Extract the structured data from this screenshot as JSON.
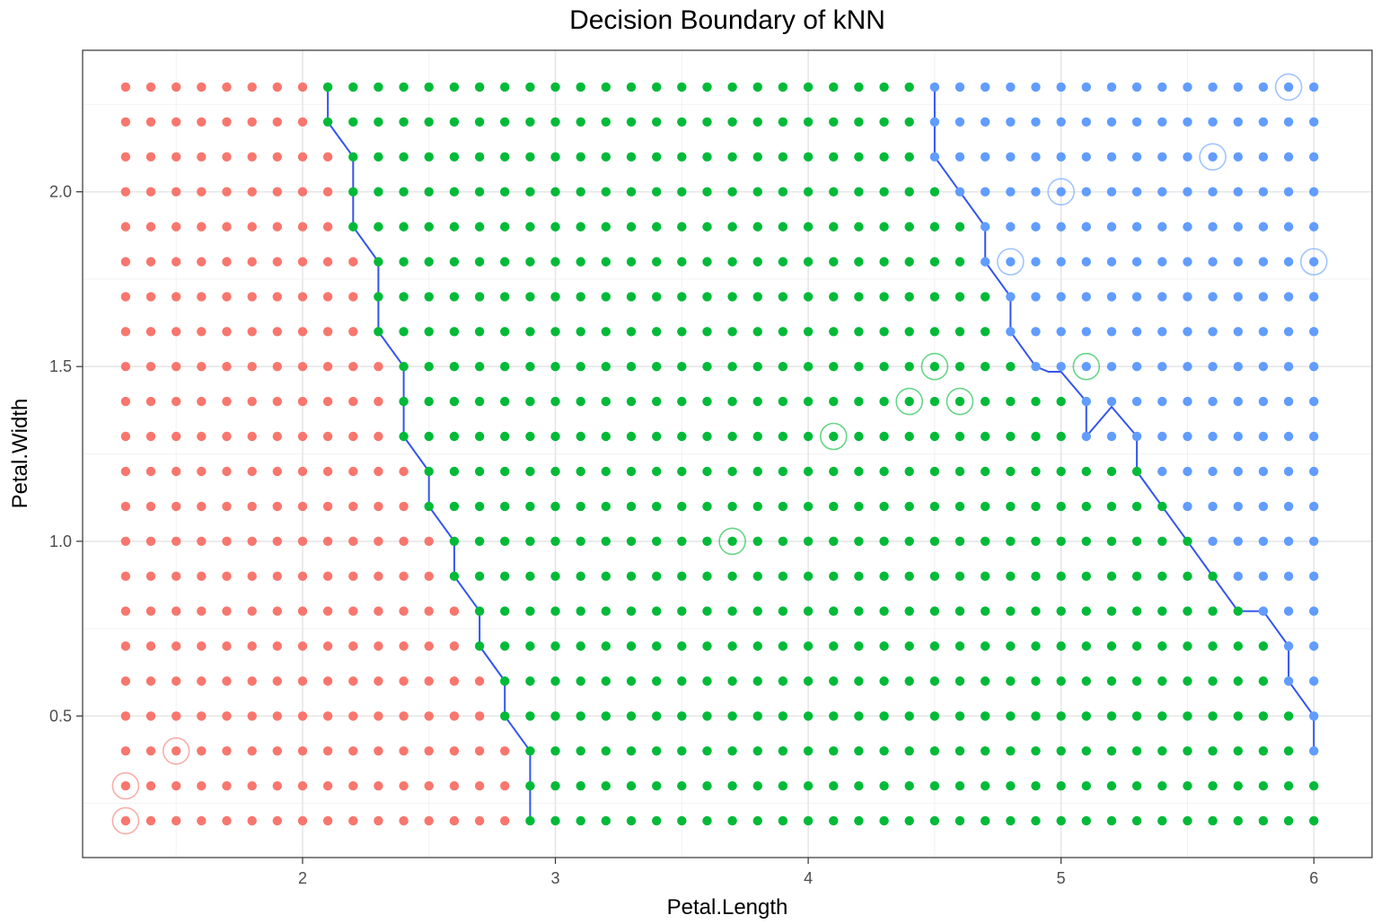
{
  "chart_data": {
    "type": "scatter",
    "title": "Decision Boundary of kNN",
    "xlabel": "Petal.Length",
    "ylabel": "Petal.Width",
    "xlim": [
      1.13,
      6.23
    ],
    "ylim": [
      0.095,
      2.405
    ],
    "xticks": [
      2,
      3,
      4,
      5,
      6
    ],
    "yticks": [
      0.5,
      1.0,
      1.5,
      2.0
    ],
    "xtick_labels": [
      "2",
      "3",
      "4",
      "5",
      "6"
    ],
    "ytick_labels": [
      "0.5",
      "1.0",
      "1.5",
      "2.0"
    ],
    "grid": true,
    "legend": "none",
    "colors": {
      "class_a": "#f8766d",
      "class_b": "#00ba38",
      "class_c": "#619cff",
      "boundary": "#3355ee",
      "grid_major": "#e6e6e6",
      "grid_minor": "#f2f2f2",
      "panel_border": "#333333"
    },
    "grid_points": {
      "x_start": 1.3,
      "x_end": 6.0,
      "x_step": 0.1,
      "y_start": 0.2,
      "y_end": 2.3,
      "y_step": 0.1,
      "class_b_min_x_by_y": [
        [
          0.2,
          2.9
        ],
        [
          0.3,
          2.9
        ],
        [
          0.4,
          2.9
        ],
        [
          0.5,
          2.8
        ],
        [
          0.6,
          2.8
        ],
        [
          0.7,
          2.7
        ],
        [
          0.8,
          2.7
        ],
        [
          0.9,
          2.6
        ],
        [
          1.0,
          2.6
        ],
        [
          1.1,
          2.5
        ],
        [
          1.2,
          2.5
        ],
        [
          1.3,
          2.4
        ],
        [
          1.4,
          2.4
        ],
        [
          1.5,
          2.4
        ],
        [
          1.6,
          2.3
        ],
        [
          1.7,
          2.3
        ],
        [
          1.8,
          2.3
        ],
        [
          1.9,
          2.2
        ],
        [
          2.0,
          2.2
        ],
        [
          2.1,
          2.2
        ],
        [
          2.2,
          2.1
        ],
        [
          2.3,
          2.1
        ]
      ],
      "class_c_min_x_by_y": [
        [
          0.2,
          null
        ],
        [
          0.3,
          null
        ],
        [
          0.4,
          6.0
        ],
        [
          0.5,
          6.0
        ],
        [
          0.6,
          5.9
        ],
        [
          0.7,
          5.9
        ],
        [
          0.8,
          5.8
        ],
        [
          0.9,
          5.7
        ],
        [
          1.0,
          5.6
        ],
        [
          1.1,
          5.5
        ],
        [
          1.2,
          5.4
        ],
        [
          1.3,
          5.3
        ],
        [
          1.4,
          5.1
        ],
        [
          1.5,
          4.9
        ],
        [
          1.6,
          4.8
        ],
        [
          1.7,
          4.8
        ],
        [
          1.8,
          4.7
        ],
        [
          1.9,
          4.7
        ],
        [
          2.0,
          4.6
        ],
        [
          2.1,
          4.5
        ],
        [
          2.2,
          4.5
        ],
        [
          2.3,
          4.5
        ]
      ],
      "class_c_extra": [
        [
          5.1,
          1.3
        ],
        [
          5.2,
          1.3
        ],
        [
          5.1,
          1.4
        ]
      ]
    },
    "training_points": [
      {
        "x": 1.3,
        "y": 0.2,
        "class": "a"
      },
      {
        "x": 1.3,
        "y": 0.3,
        "class": "a"
      },
      {
        "x": 1.5,
        "y": 0.4,
        "class": "a"
      },
      {
        "x": 3.7,
        "y": 1.0,
        "class": "b"
      },
      {
        "x": 4.1,
        "y": 1.3,
        "class": "b"
      },
      {
        "x": 4.4,
        "y": 1.4,
        "class": "b"
      },
      {
        "x": 4.6,
        "y": 1.4,
        "class": "b"
      },
      {
        "x": 4.5,
        "y": 1.5,
        "class": "b"
      },
      {
        "x": 5.1,
        "y": 1.5,
        "class": "b"
      },
      {
        "x": 4.8,
        "y": 1.8,
        "class": "c"
      },
      {
        "x": 6.0,
        "y": 1.8,
        "class": "c"
      },
      {
        "x": 5.0,
        "y": 2.0,
        "class": "c"
      },
      {
        "x": 5.6,
        "y": 2.1,
        "class": "c"
      },
      {
        "x": 5.9,
        "y": 2.3,
        "class": "c"
      }
    ],
    "boundary_ab": [
      [
        2.9,
        0.2
      ],
      [
        2.9,
        0.4
      ],
      [
        2.8,
        0.5
      ],
      [
        2.8,
        0.6
      ],
      [
        2.7,
        0.7
      ],
      [
        2.7,
        0.8
      ],
      [
        2.6,
        0.9
      ],
      [
        2.6,
        1.0
      ],
      [
        2.5,
        1.1
      ],
      [
        2.5,
        1.2
      ],
      [
        2.4,
        1.3
      ],
      [
        2.4,
        1.5
      ],
      [
        2.3,
        1.6
      ],
      [
        2.3,
        1.8
      ],
      [
        2.2,
        1.9
      ],
      [
        2.2,
        2.1
      ],
      [
        2.1,
        2.2
      ],
      [
        2.1,
        2.3
      ]
    ],
    "boundary_bc": [
      [
        4.5,
        2.3
      ],
      [
        4.5,
        2.1
      ],
      [
        4.6,
        2.0
      ],
      [
        4.7,
        1.9
      ],
      [
        4.7,
        1.8
      ],
      [
        4.8,
        1.7
      ],
      [
        4.8,
        1.6
      ],
      [
        4.9,
        1.5
      ],
      [
        4.95,
        1.485
      ],
      [
        5.0,
        1.485
      ],
      [
        5.1,
        1.4
      ],
      [
        5.1,
        1.3
      ],
      [
        5.2,
        1.385
      ],
      [
        5.3,
        1.3
      ],
      [
        5.3,
        1.2
      ],
      [
        5.4,
        1.1
      ],
      [
        5.5,
        1.0
      ],
      [
        5.6,
        0.9
      ],
      [
        5.7,
        0.8
      ],
      [
        5.8,
        0.8
      ],
      [
        5.9,
        0.7
      ],
      [
        5.9,
        0.6
      ],
      [
        6.0,
        0.5
      ],
      [
        6.0,
        0.4
      ]
    ]
  }
}
